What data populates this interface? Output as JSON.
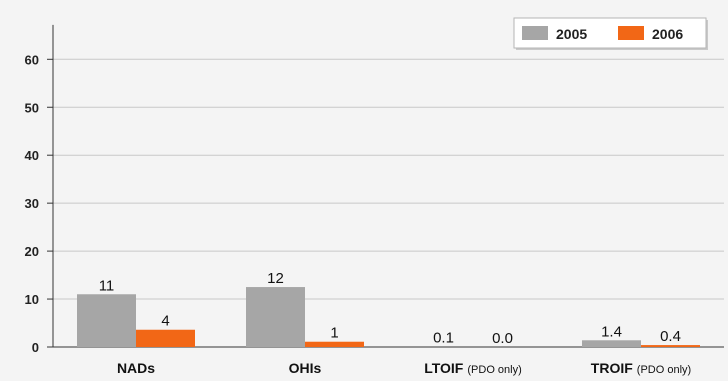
{
  "chart_data": {
    "type": "bar",
    "categories": [
      "NADs",
      "OHIs",
      "LTOIF",
      "TROIF"
    ],
    "category_notes": [
      "",
      "",
      "(PDO only)",
      "(PDO only)"
    ],
    "series": [
      {
        "name": "2005",
        "color": "#a6a6a6",
        "values": [
          11,
          12.5,
          0.1,
          1.4
        ],
        "labels": [
          "11",
          "12",
          "0.1",
          "1.4"
        ]
      },
      {
        "name": "2006",
        "color": "#f26716",
        "values": [
          3.6,
          1.1,
          0.0,
          0.4
        ],
        "labels": [
          "4",
          "1",
          "0.0",
          "0.4"
        ]
      }
    ],
    "yticks": [
      "0",
      "10",
      "20",
      "30",
      "40",
      "50",
      "60"
    ],
    "ylim": [
      0,
      63
    ],
    "grid": true,
    "legend_position": "top-right",
    "title": "",
    "xlabel": "",
    "ylabel": ""
  }
}
